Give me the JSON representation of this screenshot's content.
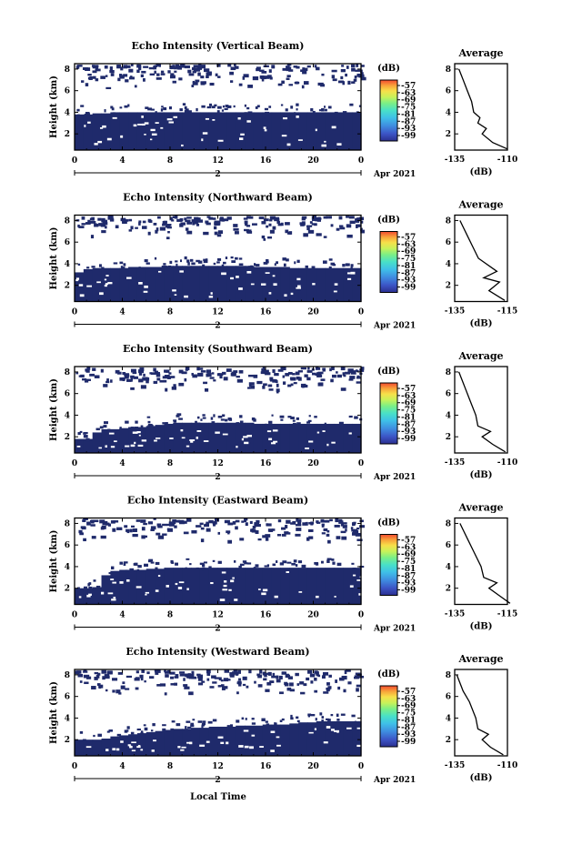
{
  "colors": {
    "background": "#1f2a6b",
    "colorbar": [
      "#2b2f8f",
      "#3c55c6",
      "#3f8de0",
      "#3fc0e8",
      "#48e0c8",
      "#7bef86",
      "#c7f25a",
      "#f7e04a",
      "#f8a23a",
      "#f24a2f"
    ]
  },
  "shared": {
    "x_tick_labels": [
      "0",
      "4",
      "8",
      "12",
      "16",
      "20",
      "0"
    ],
    "day_label": "2",
    "date_label": "Apr 2021",
    "xlabel": "Local Time",
    "ylabel": "Height (km)",
    "y_tick_labels": [
      "2",
      "4",
      "6",
      "8"
    ],
    "colorbar_unit": "(dB)",
    "colorbar_ticks": [
      "-57",
      "-63",
      "-69",
      "-75",
      "-81",
      "-87",
      "-93",
      "-99"
    ],
    "avg_title": "Average",
    "avg_xlabel": "(dB)",
    "avg_y_tick_labels": [
      "2",
      "4",
      "6",
      "8"
    ]
  },
  "chart_data": [
    {
      "type": "heatmap",
      "title": "Echo Intensity (Vertical Beam)",
      "xlim": [
        0,
        24
      ],
      "ylim": [
        0.5,
        8.5
      ],
      "avg_xticks": [
        "-135",
        "-110"
      ],
      "boundary_km": [
        3.8,
        3.8,
        3.9,
        3.9,
        4.0,
        4.0,
        4.0,
        4.0,
        4.0,
        4.0,
        4.0,
        4.0,
        4.0,
        4.0,
        4.0,
        4.0,
        4.0,
        4.0,
        4.0,
        4.0,
        4.0,
        4.0,
        4.0,
        4.0,
        4.0,
        4.0,
        4.0,
        4.0,
        4.0,
        4.0,
        4.0,
        4.0,
        4.0
      ],
      "avg_profile": {
        "x": [
          -110,
          -117,
          -122,
          -120,
          -124,
          -123,
          -126,
          -127,
          -129,
          -131,
          -133
        ],
        "y": [
          0.6,
          1.2,
          2.0,
          2.5,
          3.0,
          3.5,
          4.0,
          5.0,
          6.0,
          7.0,
          8.0
        ]
      }
    },
    {
      "type": "heatmap",
      "title": "Echo Intensity (Northward Beam)",
      "xlim": [
        0,
        24
      ],
      "ylim": [
        0.5,
        8.5
      ],
      "avg_xticks": [
        "-135",
        "-115"
      ],
      "boundary_km": [
        3.2,
        3.5,
        3.6,
        3.6,
        3.6,
        3.6,
        3.7,
        3.7,
        3.7,
        3.7,
        3.8,
        3.8,
        3.8,
        3.8,
        3.8,
        3.8,
        3.8,
        3.8,
        3.8,
        3.8,
        3.7,
        3.7,
        3.7,
        3.7,
        3.6,
        3.6,
        3.6,
        3.6,
        3.6,
        3.6,
        3.6,
        3.6,
        3.6
      ],
      "avg_profile": {
        "x": [
          -116,
          -122,
          -118,
          -124,
          -119,
          -126,
          -128,
          -130,
          -133
        ],
        "y": [
          0.6,
          1.5,
          2.3,
          2.7,
          3.3,
          4.5,
          5.5,
          6.5,
          8.0
        ]
      }
    },
    {
      "type": "heatmap",
      "title": "Echo Intensity (Southward Beam)",
      "xlim": [
        0,
        24
      ],
      "ylim": [
        0.5,
        8.5
      ],
      "avg_xticks": [
        "-135",
        "-110"
      ],
      "boundary_km": [
        1.8,
        1.8,
        2.4,
        2.7,
        2.7,
        2.8,
        2.9,
        2.9,
        3.0,
        3.1,
        3.2,
        3.3,
        3.3,
        3.3,
        3.3,
        3.3,
        3.3,
        3.3,
        3.3,
        3.3,
        3.2,
        3.2,
        3.2,
        3.2,
        3.2,
        3.2,
        3.2,
        3.2,
        3.2,
        3.2,
        3.2,
        3.2,
        3.2
      ],
      "avg_profile": {
        "x": [
          -111,
          -117,
          -122,
          -118,
          -124,
          -125,
          -128,
          -130,
          -133
        ],
        "y": [
          0.6,
          1.3,
          2.0,
          2.5,
          3.0,
          4.0,
          5.5,
          6.5,
          8.0
        ]
      }
    },
    {
      "type": "heatmap",
      "title": "Echo Intensity (Eastward Beam)",
      "xlim": [
        0,
        24
      ],
      "ylim": [
        0.5,
        8.5
      ],
      "avg_xticks": [
        "-135",
        "-115"
      ],
      "boundary_km": [
        2.0,
        2.0,
        2.1,
        3.2,
        3.6,
        3.7,
        3.7,
        3.7,
        3.8,
        3.8,
        3.9,
        3.9,
        3.9,
        3.9,
        3.9,
        3.9,
        3.9,
        3.9,
        3.9,
        3.9,
        3.9,
        3.9,
        3.9,
        3.9,
        3.9,
        3.9,
        3.9,
        3.9,
        3.9,
        3.9,
        3.9,
        3.9,
        3.9
      ],
      "avg_profile": {
        "x": [
          -114,
          -118,
          -122,
          -119,
          -124,
          -125,
          -128,
          -130,
          -133
        ],
        "y": [
          0.6,
          1.3,
          2.0,
          2.5,
          3.0,
          4.0,
          5.5,
          6.5,
          8.0
        ]
      }
    },
    {
      "type": "heatmap",
      "title": "Echo Intensity (Westward Beam)",
      "xlim": [
        0,
        24
      ],
      "ylim": [
        0.5,
        8.5
      ],
      "avg_xticks": [
        "-135",
        "-110"
      ],
      "boundary_km": [
        2.0,
        2.0,
        2.0,
        2.1,
        2.3,
        2.4,
        2.5,
        2.6,
        2.7,
        2.8,
        2.9,
        3.0,
        3.0,
        3.1,
        3.1,
        3.2,
        3.2,
        3.2,
        3.3,
        3.3,
        3.3,
        3.4,
        3.4,
        3.4,
        3.5,
        3.6,
        3.6,
        3.7,
        3.7,
        3.7,
        3.7,
        3.7,
        3.7
      ],
      "avg_profile": {
        "x": [
          -112,
          -118,
          -122,
          -119,
          -124,
          -125,
          -128,
          -131,
          -134
        ],
        "y": [
          0.6,
          1.3,
          2.0,
          2.5,
          3.0,
          4.0,
          5.5,
          6.5,
          8.0
        ]
      }
    }
  ]
}
